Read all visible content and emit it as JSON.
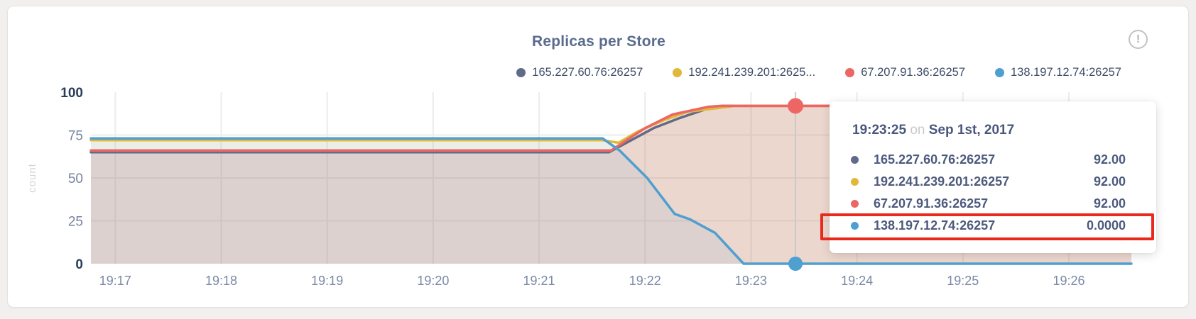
{
  "panel": {
    "title": "Replicas per Store",
    "info_icon_glyph": "!"
  },
  "legend": {
    "items": [
      {
        "label": "165.227.60.76:26257",
        "color": "#5f6b87"
      },
      {
        "label": "192.241.239.201:2625...",
        "color": "#e0b93a"
      },
      {
        "label": "67.207.91.36:26257",
        "color": "#ed6663"
      },
      {
        "label": "138.197.12.74:26257",
        "color": "#4f9fd0"
      }
    ]
  },
  "chart_data": {
    "type": "area",
    "title": "Replicas per Store",
    "ylabel": "count",
    "ylim": [
      0,
      100
    ],
    "y_ticks": [
      0,
      25,
      50,
      75,
      100
    ],
    "x_tick_labels": [
      "19:17",
      "19:18",
      "19:19",
      "19:20",
      "19:21",
      "19:22",
      "19:23",
      "19:24",
      "19:25",
      "19:26"
    ],
    "x_tick_minutes": [
      0,
      1,
      2,
      3,
      4,
      5,
      6,
      7,
      8,
      9
    ],
    "xlim_minutes": [
      -0.23,
      9.59
    ],
    "grid": true,
    "legend_position": "top",
    "crosshair": {
      "minute": 6.42,
      "time": "19:23:25"
    },
    "series": [
      {
        "name": "165.227.60.76:26257",
        "color": "#5f6b87",
        "fill_opacity": 0.1,
        "points": [
          [
            -0.23,
            65
          ],
          [
            4.66,
            65
          ],
          [
            5.08,
            79
          ],
          [
            5.33,
            85
          ],
          [
            5.57,
            90
          ],
          [
            5.72,
            92
          ],
          [
            9.59,
            92
          ]
        ]
      },
      {
        "name": "192.241.239.201:26257",
        "color": "#e0b93a",
        "fill_opacity": 0.1,
        "points": [
          [
            -0.23,
            72
          ],
          [
            4.6,
            72
          ],
          [
            4.75,
            70.5
          ],
          [
            4.93,
            77
          ],
          [
            5.17,
            83.5
          ],
          [
            5.4,
            88.5
          ],
          [
            5.72,
            91
          ],
          [
            5.85,
            92
          ],
          [
            9.59,
            92
          ]
        ]
      },
      {
        "name": "67.207.91.36:26257",
        "color": "#ed6663",
        "fill_opacity": 0.14,
        "points": [
          [
            -0.23,
            66
          ],
          [
            4.68,
            66
          ],
          [
            4.85,
            73
          ],
          [
            5.0,
            79
          ],
          [
            5.26,
            87
          ],
          [
            5.6,
            91.5
          ],
          [
            5.72,
            92
          ],
          [
            9.59,
            92
          ]
        ]
      },
      {
        "name": "138.197.12.74:26257",
        "color": "#4f9fd0",
        "fill_opacity": 0.1,
        "points": [
          [
            -0.23,
            73
          ],
          [
            4.6,
            73
          ],
          [
            4.76,
            66
          ],
          [
            5.02,
            50
          ],
          [
            5.28,
            29
          ],
          [
            5.42,
            26
          ],
          [
            5.66,
            18
          ],
          [
            5.93,
            0
          ],
          [
            9.59,
            0
          ]
        ]
      }
    ],
    "markers": [
      {
        "series": "67.207.91.36:26257",
        "minute": 6.42,
        "value": 92,
        "r": 11
      },
      {
        "series": "138.197.12.74:26257",
        "minute": 6.42,
        "value": 0,
        "r": 10
      }
    ],
    "colors": {
      "gridline": "#ececec",
      "crosshair": "#c9c9c9",
      "tick_label": "#7b89a5",
      "y_tick_label_mid": "#76849e",
      "y_tick_label_end": "#2a3e5c",
      "ylabel": "#d6d6d6"
    }
  },
  "tooltip": {
    "time": "19:23:25",
    "on_word": "on",
    "date": "Sep 1st, 2017",
    "rows": [
      {
        "label": "165.227.60.76:26257",
        "value": "92.00",
        "color": "#5f6b87",
        "highlighted": false
      },
      {
        "label": "192.241.239.201:26257",
        "value": "92.00",
        "color": "#e0b93a",
        "highlighted": false
      },
      {
        "label": "67.207.91.36:26257",
        "value": "92.00",
        "color": "#ed6663",
        "highlighted": false
      },
      {
        "label": "138.197.12.74:26257",
        "value": "0.0000",
        "color": "#4f9fd0",
        "highlighted": true
      }
    ],
    "highlight_color": "#e8291c"
  }
}
